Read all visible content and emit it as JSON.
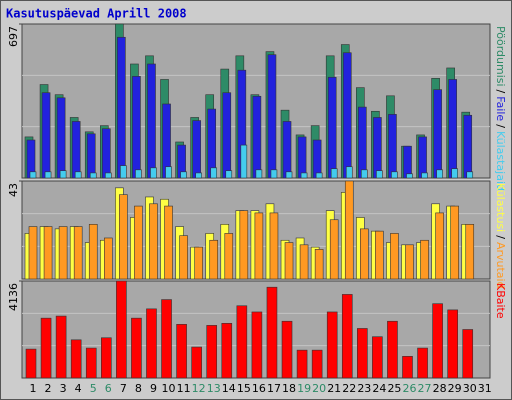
{
  "title": "Kasutuspäevad Aprill 2008",
  "legend_separator": "/",
  "chart_data": [
    {
      "type": "bar",
      "ylim": [
        0,
        697
      ],
      "yticks": [
        697
      ],
      "grid_divisions": 3,
      "series": [
        {
          "name": "Pöördumisi",
          "color": "#2e8b67",
          "values": [
            186,
            423,
            377,
            274,
            209,
            237,
            697,
            516,
            553,
            446,
            163,
            274,
            377,
            493,
            553,
            377,
            572,
            307,
            195,
            237,
            553,
            604,
            409,
            302,
            372,
            144,
            195,
            451,
            498,
            298,
            null
          ]
        },
        {
          "name": "Faile",
          "color": "#2222dd",
          "values": [
            172,
            386,
            363,
            256,
            200,
            223,
            637,
            460,
            516,
            335,
            149,
            260,
            312,
            386,
            488,
            370,
            558,
            256,
            186,
            172,
            456,
            567,
            321,
            274,
            288,
            144,
            186,
            400,
            446,
            284,
            null
          ]
        },
        {
          "name": "Külastajaid",
          "color": "#44ccee",
          "values": [
            28,
            28,
            33,
            28,
            23,
            23,
            56,
            37,
            46,
            51,
            28,
            23,
            46,
            33,
            149,
            37,
            37,
            28,
            23,
            23,
            42,
            51,
            37,
            33,
            28,
            19,
            23,
            37,
            42,
            28,
            null
          ]
        }
      ]
    },
    {
      "type": "bar",
      "ylim": [
        0,
        43
      ],
      "yticks": [
        43
      ],
      "grid_divisions": 3,
      "series": [
        {
          "name": "Külastusi",
          "color": "#ffff44",
          "values": [
            20,
            23,
            22,
            23,
            16,
            17,
            40,
            27,
            36,
            35,
            23,
            14,
            20,
            24,
            30,
            30,
            33,
            17,
            18,
            14,
            30,
            38,
            27,
            21,
            16,
            15,
            16,
            33,
            32,
            24,
            null
          ]
        },
        {
          "name": "Arvutaid",
          "color": "#ff9922",
          "values": [
            23,
            23,
            23,
            23,
            24,
            18,
            37,
            32,
            33,
            32,
            19,
            14,
            17,
            20,
            30,
            29,
            29,
            16,
            15,
            13,
            26,
            43,
            22,
            21,
            20,
            15,
            17,
            29,
            32,
            24,
            null
          ]
        }
      ]
    },
    {
      "type": "bar",
      "ylim": [
        0,
        4136
      ],
      "yticks": [
        4136
      ],
      "grid_divisions": 3,
      "categories": [
        1,
        2,
        3,
        4,
        5,
        6,
        7,
        8,
        9,
        10,
        11,
        12,
        13,
        14,
        15,
        16,
        17,
        18,
        19,
        20,
        21,
        22,
        23,
        24,
        25,
        26,
        27,
        28,
        29,
        30,
        31
      ],
      "category_colors": [
        "#000000",
        "#000000",
        "#000000",
        "#000000",
        "#2e8b67",
        "#2e8b67",
        "#000000",
        "#000000",
        "#000000",
        "#000000",
        "#000000",
        "#2e8b67",
        "#2e8b67",
        "#000000",
        "#000000",
        "#000000",
        "#000000",
        "#000000",
        "#2e8b67",
        "#2e8b67",
        "#000000",
        "#000000",
        "#000000",
        "#000000",
        "#000000",
        "#2e8b67",
        "#2e8b67",
        "#000000",
        "#000000",
        "#000000",
        "#000000"
      ],
      "series": [
        {
          "name": "KBaite",
          "color": "#ff0000",
          "values": [
            1232,
            2552,
            2640,
            1628,
            1276,
            1716,
            4136,
            2552,
            2948,
            3344,
            2288,
            1320,
            2244,
            2332,
            3080,
            2816,
            3872,
            2420,
            1188,
            1188,
            2816,
            3564,
            2112,
            1760,
            2420,
            924,
            1276,
            3168,
            2904,
            2068,
            null
          ]
        }
      ]
    }
  ]
}
